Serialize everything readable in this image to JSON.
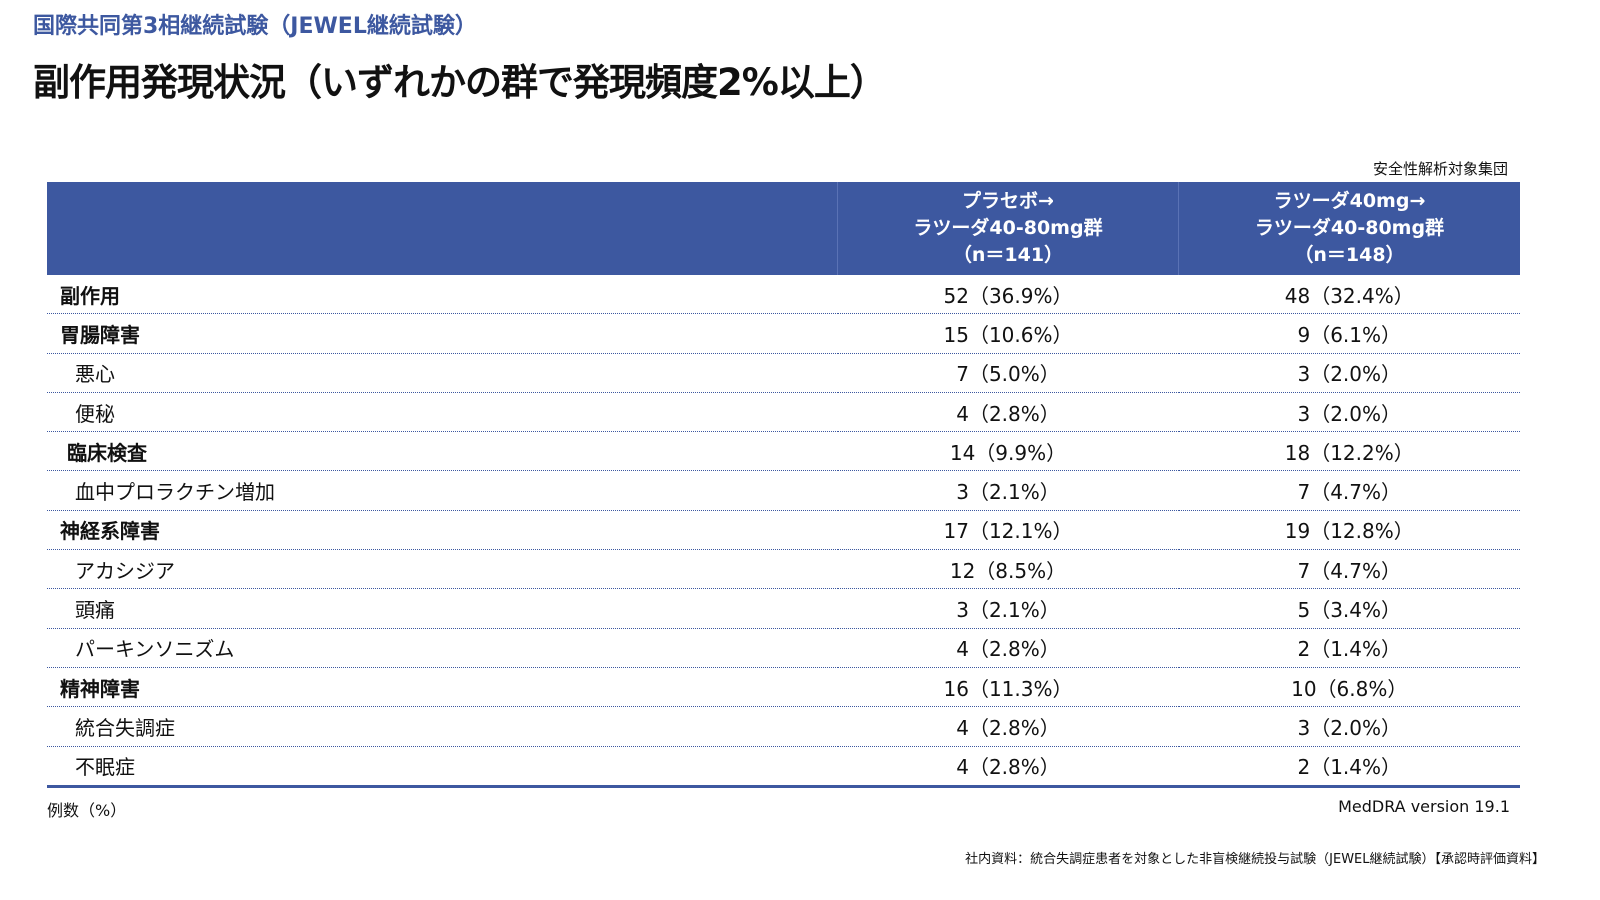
{
  "subtitle": "国際共同第3相継続試験（JEWEL継続試験）",
  "title": "副作用発現状況（いずれかの群で発現頻度2%以上）",
  "population": "安全性解析対象集団",
  "columns": [
    {
      "line1": "プラセボ→",
      "line2": "ラツーダ40-80mg群",
      "line3": "（n＝141）"
    },
    {
      "line1": "ラツーダ40mg→",
      "line2": "ラツーダ40-80mg群",
      "line3": "（n＝148）"
    }
  ],
  "rows": [
    {
      "label": "副作用",
      "level": "cat",
      "a": "52（36.9%）",
      "b": "48（32.4%）"
    },
    {
      "label": "胃腸障害",
      "level": "cat",
      "a": "15（10.6%）",
      "b": "9（6.1%）"
    },
    {
      "label": "悪心",
      "level": "sub",
      "a": "7（5.0%）",
      "b": "3（2.0%）"
    },
    {
      "label": "便秘",
      "level": "sub",
      "a": "4（2.8%）",
      "b": "3（2.0%）"
    },
    {
      "label": "臨床検査",
      "level": "cat2",
      "a": "14（9.9%）",
      "b": "18（12.2%）"
    },
    {
      "label": "血中プロラクチン増加",
      "level": "sub",
      "a": "3（2.1%）",
      "b": "7（4.7%）"
    },
    {
      "label": "神経系障害",
      "level": "cat",
      "a": "17（12.1%）",
      "b": "19（12.8%）"
    },
    {
      "label": "アカシジア",
      "level": "sub",
      "a": "12（8.5%）",
      "b": "7（4.7%）"
    },
    {
      "label": "頭痛",
      "level": "sub",
      "a": "3（2.1%）",
      "b": "5（3.4%）"
    },
    {
      "label": "パーキンソニズム",
      "level": "sub",
      "a": "4（2.8%）",
      "b": "2（1.4%）"
    },
    {
      "label": "精神障害",
      "level": "cat",
      "a": "16（11.3%）",
      "b": "10（6.8%）"
    },
    {
      "label": "統合失調症",
      "level": "sub",
      "a": "4（2.8%）",
      "b": "3（2.0%）"
    },
    {
      "label": "不眠症",
      "level": "sub",
      "a": "4（2.8%）",
      "b": "2（1.4%）"
    }
  ],
  "unit_note": "例数（%）",
  "meddra": "MedDRA version 19.1",
  "source": "社内資料：統合失調症患者を対象とした非盲検継続投与試験（JEWEL継続試験）【承認時評価資料】"
}
